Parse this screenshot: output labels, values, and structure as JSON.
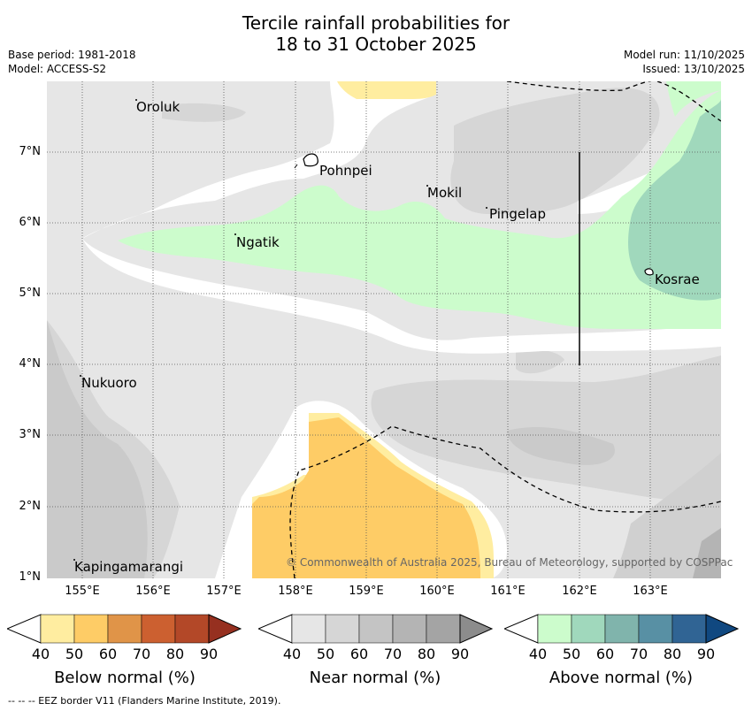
{
  "title_line1": "Tercile rainfall probabilities for",
  "title_line2": "18 to 31 October 2025",
  "base_period": "Base period: 1981-2018",
  "model": "Model: ACCESS-S2",
  "model_run": "Model run: 11/10/2025",
  "issued": "Issued: 13/10/2025",
  "y_ticks": [
    "7°N",
    "6°N",
    "5°N",
    "4°N",
    "3°N",
    "2°N",
    "1°N"
  ],
  "x_ticks": [
    "155°E",
    "156°E",
    "157°E",
    "158°E",
    "159°E",
    "160°E",
    "161°E",
    "162°E",
    "163°E"
  ],
  "places": {
    "oroluk": "Oroluk",
    "pohnpei": "Pohnpei",
    "mokil": "Mokil",
    "pingelap": "Pingelap",
    "ngatik": "Ngatik",
    "kosrae": "Kosrae",
    "nukuoro": "Nukuoro",
    "kapingamarangi": "Kapingamarangi"
  },
  "copyright": "© Commonwealth of Australia 2025, Bureau of Meteorology, supported by COSPPac",
  "colorbars": {
    "below": {
      "label": "Below normal (%)",
      "ticks": [
        "40",
        "50",
        "60",
        "70",
        "80",
        "90"
      ],
      "colors": [
        "#ffeda0",
        "#fecc66",
        "#e09448",
        "#cc6030",
        "#b34828",
        "#963020"
      ]
    },
    "near": {
      "label": "Near normal (%)",
      "ticks": [
        "40",
        "50",
        "60",
        "70",
        "80",
        "90"
      ],
      "colors": [
        "#e6e6e6",
        "#d6d6d6",
        "#c4c4c4",
        "#b4b4b4",
        "#a4a4a4",
        "#8c8c8c"
      ]
    },
    "above": {
      "label": "Above normal (%)",
      "ticks": [
        "40",
        "50",
        "60",
        "70",
        "80",
        "90"
      ],
      "colors": [
        "#ccfccc",
        "#a0d8bc",
        "#80b4ac",
        "#5890a4",
        "#306494",
        "#104880"
      ]
    }
  },
  "footer": "-- -- -- EEZ border V11 (Flanders Marine Institute, 2019)."
}
